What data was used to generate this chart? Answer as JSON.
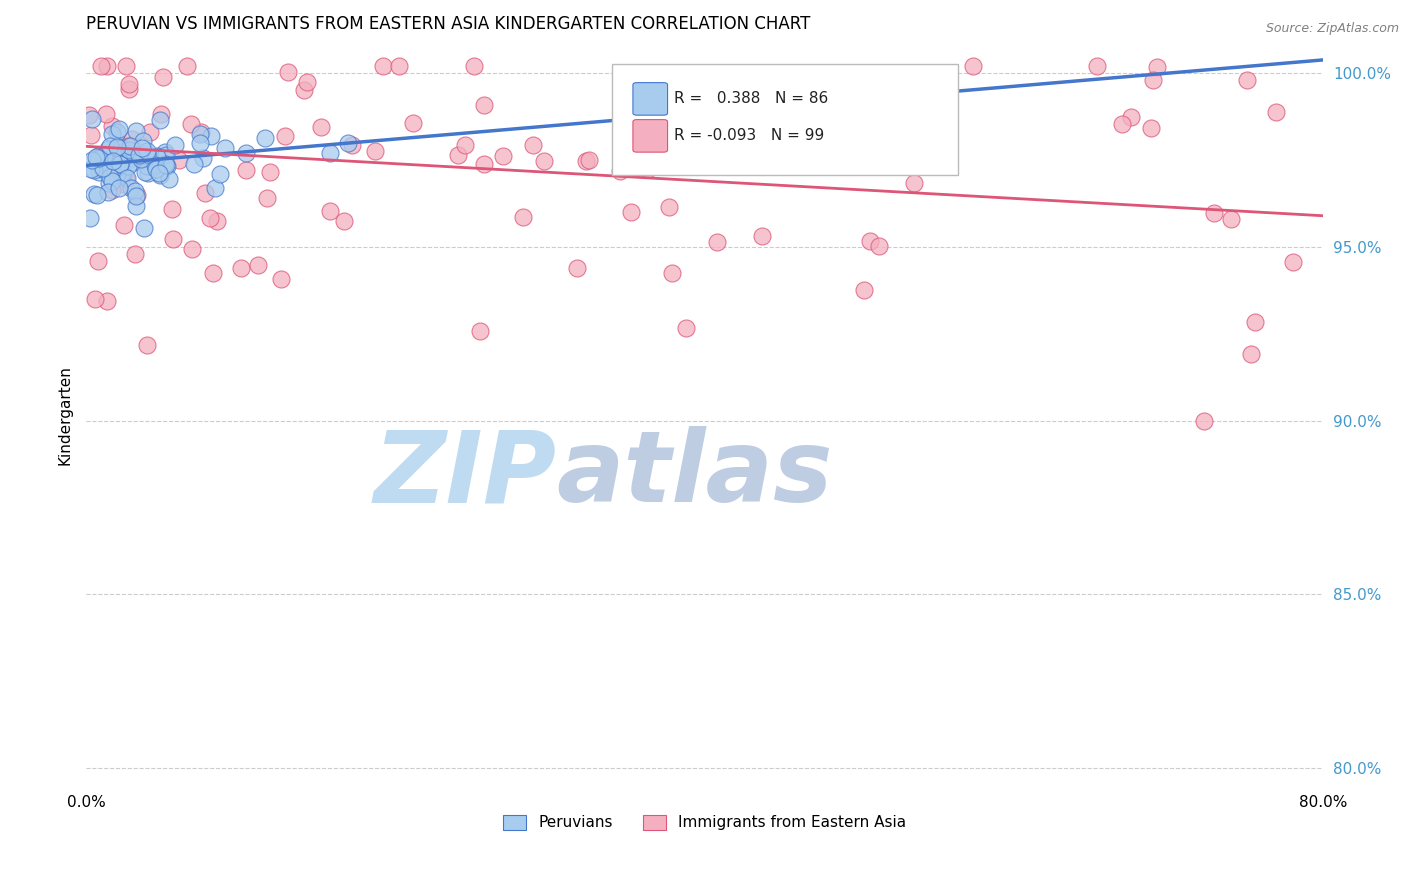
{
  "title": "PERUVIAN VS IMMIGRANTS FROM EASTERN ASIA KINDERGARTEN CORRELATION CHART",
  "source_text": "Source: ZipAtlas.com",
  "ylabel": "Kindergarten",
  "xlim": [
    0.0,
    0.8
  ],
  "ylim": [
    0.795,
    1.008
  ],
  "xticks": [
    0.0,
    0.1,
    0.2,
    0.3,
    0.4,
    0.5,
    0.6,
    0.7,
    0.8
  ],
  "xticklabels": [
    "0.0%",
    "",
    "",
    "",
    "",
    "",
    "",
    "",
    "80.0%"
  ],
  "yticks": [
    0.8,
    0.85,
    0.9,
    0.95,
    1.0
  ],
  "yticklabels": [
    "80.0%",
    "85.0%",
    "90.0%",
    "95.0%",
    "100.0%"
  ],
  "legend_labels": [
    "Peruvians",
    "Immigrants from Eastern Asia"
  ],
  "R_blue": 0.388,
  "N_blue": 86,
  "R_pink": -0.093,
  "N_pink": 99,
  "blue_color": "#a8ccee",
  "pink_color": "#f4b0c0",
  "blue_line_color": "#4477cc",
  "pink_line_color": "#dd5577",
  "ytick_color": "#4499cc",
  "watermark_zip": "ZIP",
  "watermark_atlas": "atlas",
  "watermark_color_zip": "#b8d8f0",
  "watermark_color_atlas": "#b8c8e0",
  "background_color": "#ffffff",
  "grid_color": "#cccccc",
  "title_fontsize": 12,
  "axis_label_fontsize": 11,
  "tick_fontsize": 11,
  "blue_intercept": 0.9735,
  "blue_slope": 0.038,
  "pink_intercept": 0.979,
  "pink_slope": -0.025
}
